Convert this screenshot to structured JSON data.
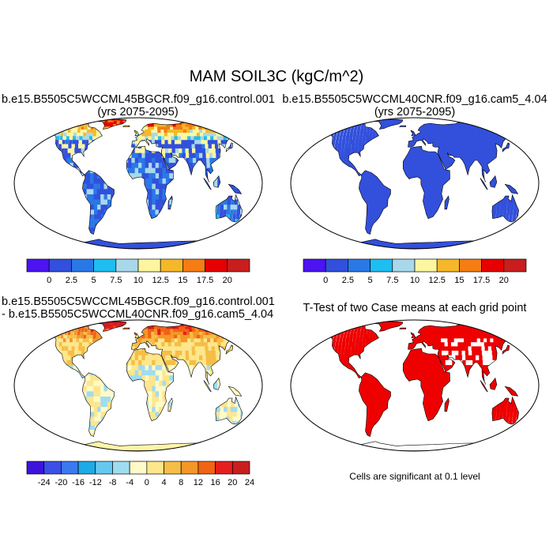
{
  "figure": {
    "title": "MAM SOIL3C (kgC/m^2)",
    "panels": [
      {
        "title_line1": "b.e15.B5505C5WCCML45BGCR.f09_g16.control.001",
        "title_line2": "(yrs 2075-2095)",
        "field": "soil carbon case 1",
        "colorbar": {
          "colors": [
            "#4b14f0",
            "#3250dc",
            "#2a78e6",
            "#1ebef0",
            "#a8d8ea",
            "#fdf6a0",
            "#f5b82a",
            "#f57d14",
            "#e60000",
            "#c81e1e"
          ],
          "labels": [
            "0",
            "2.5",
            "5",
            "7.5",
            "10",
            "12.5",
            "15",
            "17.5",
            "20"
          ]
        }
      },
      {
        "title_line1": "b.e15.B5505C5WCCML40CNR.f09_g16.cam5_4.04",
        "title_line2": "(yrs 2075-2095)",
        "field": "soil carbon case 2",
        "colorbar": {
          "colors": [
            "#4b14f0",
            "#3250dc",
            "#2a78e6",
            "#1ebef0",
            "#a8d8ea",
            "#fdf6a0",
            "#f5b82a",
            "#f57d14",
            "#e60000",
            "#c81e1e"
          ],
          "labels": [
            "0",
            "2.5",
            "5",
            "7.5",
            "10",
            "12.5",
            "15",
            "17.5",
            "20"
          ]
        }
      },
      {
        "title_line1": "b.e15.B5505C5WCCML45BGCR.f09_g16.control.001",
        "title_line2": "- b.e15.B5505C5WCCML40CNR.f09_g16.cam5_4.04",
        "field": "difference",
        "colorbar": {
          "colors": [
            "#3c14dc",
            "#3c50e6",
            "#3c78f0",
            "#1eaae6",
            "#64c8f0",
            "#a0dcf0",
            "#fffac8",
            "#fde68c",
            "#f5be46",
            "#f59628",
            "#f06414",
            "#e61e1e",
            "#c81e1e"
          ],
          "labels": [
            "-24",
            "-20",
            "-16",
            "-12",
            "-8",
            "-4",
            "0",
            "4",
            "8",
            "12",
            "16",
            "20",
            "24"
          ]
        }
      },
      {
        "title_line1": "T-Test of two Case means at each grid point",
        "field": "significance",
        "note": "Cells are significant at 0.1 level"
      }
    ],
    "colors": {
      "ocean": "#ffffff",
      "coast": "#000000",
      "uniform_low": "#3250dc",
      "significant": "#ee0000",
      "difference_base": "#fff5a8"
    }
  }
}
